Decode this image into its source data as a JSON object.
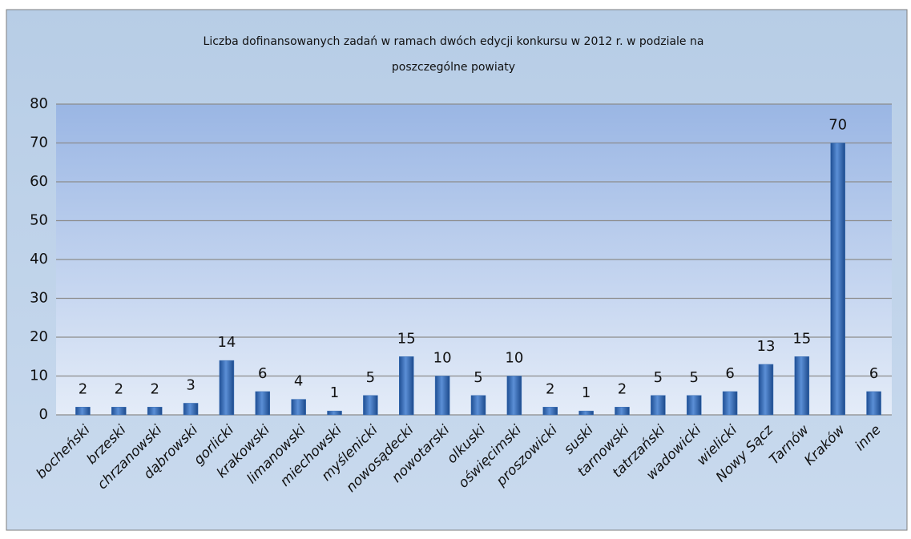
{
  "chart_data": {
    "type": "bar",
    "title": [
      "Liczba dofinansowanych zadań w ramach dwóch edycji konkursu w 2012 r. w podziale na",
      "poszczególne powiaty"
    ],
    "categories": [
      "bocheński",
      "brzeski",
      "chrzanowski",
      "dąbrowski",
      "gorlicki",
      "krakowski",
      "limanowski",
      "miechowski",
      "myślenicki",
      "nowosądecki",
      "nowotarski",
      "olkuski",
      "oświęcimski",
      "proszowicki",
      "suski",
      "tarnowski",
      "tatrzański",
      "wadowicki",
      "wielicki",
      "Nowy Sącz",
      "Tarnów",
      "Kraków",
      "inne"
    ],
    "values": [
      2,
      2,
      2,
      3,
      14,
      6,
      4,
      1,
      5,
      15,
      10,
      5,
      10,
      2,
      1,
      2,
      5,
      5,
      6,
      13,
      15,
      70,
      6
    ],
    "color": "#3a6fb5",
    "ylim": [
      0,
      80
    ],
    "yticks": [
      0,
      10,
      20,
      30,
      40,
      50,
      60,
      70,
      80
    ],
    "grid": true
  }
}
